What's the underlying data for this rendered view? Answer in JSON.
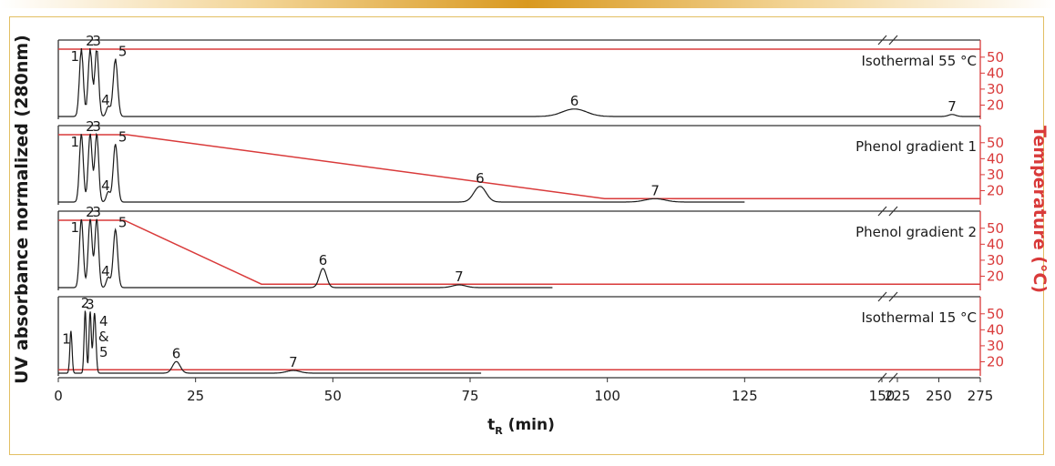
{
  "chart_data": {
    "type": "line",
    "ylabel": "UV absorbance normalized (280nm)",
    "xlabel": "t",
    "xlabel_sub": "R",
    "xlabel_unit": " (min)",
    "y2label": "Temperature (°C)",
    "x_ticks": [
      "0",
      "25",
      "50",
      "75",
      "100",
      "125",
      "150",
      "225",
      "250",
      "275"
    ],
    "temp_ticks": [
      "20",
      "30",
      "40",
      "50"
    ],
    "x_break": [
      150,
      225
    ],
    "temp_range": [
      14,
      55
    ],
    "colors": {
      "trace": "#1a1a1a",
      "temperature": "#d93a3a"
    },
    "panels": [
      {
        "name": "Isothermal 55 °C",
        "end_x": 275,
        "break_marks": true,
        "peaks": [
          {
            "label": "1",
            "x": 4.2,
            "height": 1.0,
            "width": 0.35
          },
          {
            "label": "2",
            "x": 5.8,
            "height": 1.0,
            "width": 0.35
          },
          {
            "label": "3",
            "x": 7.0,
            "height": 1.0,
            "width": 0.35
          },
          {
            "label": "4",
            "x": 9.1,
            "height": 0.15,
            "width": 0.35
          },
          {
            "label": "5",
            "x": 10.4,
            "height": 0.85,
            "width": 0.4
          },
          {
            "label": "6",
            "x": 94.0,
            "height": 0.11,
            "width": 2.2
          },
          {
            "label": "7",
            "x": 258.0,
            "height": 0.03,
            "width": 2.2
          }
        ],
        "temperature": [
          [
            0,
            55
          ],
          [
            275,
            55
          ]
        ]
      },
      {
        "name": "Phenol gradient 1",
        "end_x": 125,
        "break_marks": false,
        "peaks": [
          {
            "label": "1",
            "x": 4.2,
            "height": 1.0,
            "width": 0.35
          },
          {
            "label": "2",
            "x": 5.8,
            "height": 1.0,
            "width": 0.35
          },
          {
            "label": "3",
            "x": 7.0,
            "height": 1.0,
            "width": 0.35
          },
          {
            "label": "4",
            "x": 9.1,
            "height": 0.15,
            "width": 0.35
          },
          {
            "label": "5",
            "x": 10.4,
            "height": 0.85,
            "width": 0.4
          },
          {
            "label": "6",
            "x": 76.8,
            "height": 0.23,
            "width": 1.1
          },
          {
            "label": "7",
            "x": 108.7,
            "height": 0.05,
            "width": 1.8
          }
        ],
        "temperature": [
          [
            0,
            55
          ],
          [
            12.5,
            55
          ],
          [
            99.5,
            15
          ],
          [
            275,
            15
          ]
        ]
      },
      {
        "name": "Phenol gradient 2",
        "end_x": 90,
        "break_marks": true,
        "peaks": [
          {
            "label": "1",
            "x": 4.2,
            "height": 1.0,
            "width": 0.35
          },
          {
            "label": "2",
            "x": 5.8,
            "height": 1.0,
            "width": 0.35
          },
          {
            "label": "3",
            "x": 7.0,
            "height": 1.0,
            "width": 0.35
          },
          {
            "label": "4",
            "x": 9.1,
            "height": 0.15,
            "width": 0.35
          },
          {
            "label": "5",
            "x": 10.4,
            "height": 0.85,
            "width": 0.4
          },
          {
            "label": "6",
            "x": 48.2,
            "height": 0.28,
            "width": 0.65
          },
          {
            "label": "7",
            "x": 73.0,
            "height": 0.04,
            "width": 1.2
          }
        ],
        "temperature": [
          [
            0,
            55
          ],
          [
            12.0,
            55
          ],
          [
            37.0,
            15
          ],
          [
            275,
            15
          ]
        ]
      },
      {
        "name": "Isothermal 15 °C",
        "end_x": 77,
        "break_marks": true,
        "peaks": [
          {
            "label": "1",
            "x": 2.3,
            "height": 0.62,
            "width": 0.2
          },
          {
            "label": "2",
            "x": 4.9,
            "height": 0.92,
            "width": 0.2
          },
          {
            "label": "3",
            "x": 5.8,
            "height": 0.9,
            "width": 0.2
          },
          {
            "label": "4 & 5",
            "x": 6.6,
            "height": 0.88,
            "width": 0.25
          },
          {
            "label": "6",
            "x": 21.5,
            "height": 0.17,
            "width": 0.7
          },
          {
            "label": "7",
            "x": 42.8,
            "height": 0.04,
            "width": 1.2
          }
        ],
        "temperature": [
          [
            0,
            15
          ],
          [
            275,
            15
          ]
        ]
      }
    ]
  }
}
